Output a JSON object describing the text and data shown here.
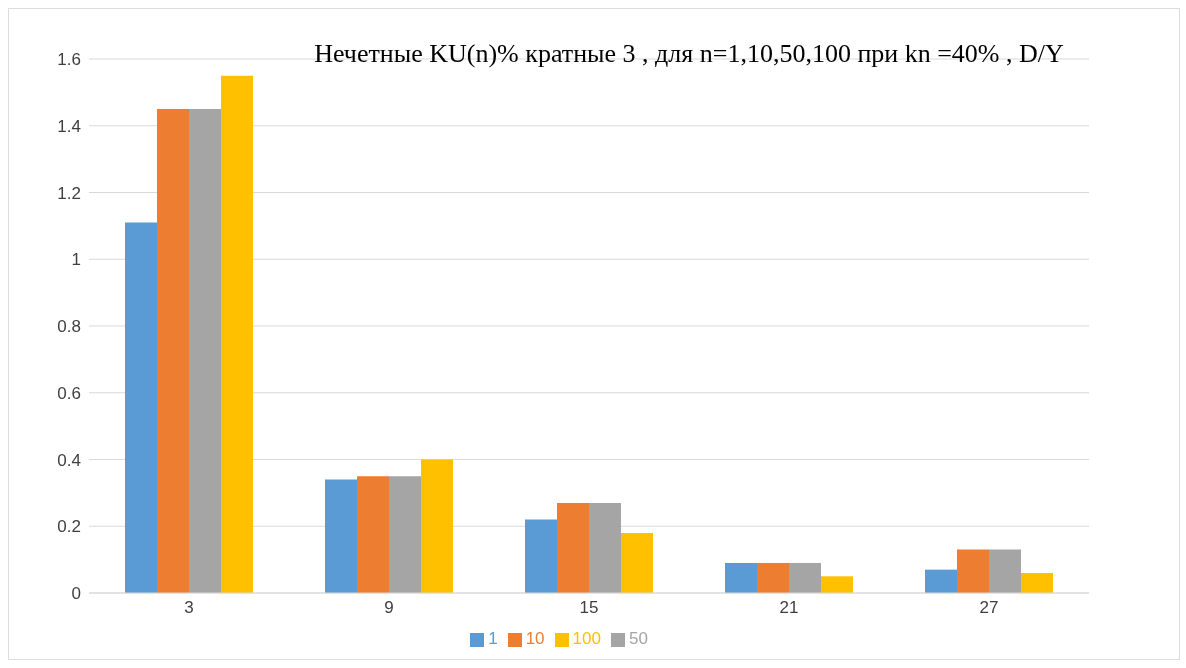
{
  "chart_data": {
    "type": "bar",
    "title": "Нечетные KU(n)%   кратные 3 ,  для n=1,10,50,100 при kn =40% , D/Y",
    "categories": [
      "3",
      "9",
      "15",
      "21",
      "27"
    ],
    "series": [
      {
        "name": "1",
        "color": "#5b9bd5",
        "values": [
          1.11,
          0.34,
          0.22,
          0.09,
          0.07
        ]
      },
      {
        "name": "10",
        "color": "#ed7d31",
        "values": [
          1.45,
          0.35,
          0.27,
          0.09,
          0.13
        ]
      },
      {
        "name": "50",
        "color": "#a5a5a5",
        "values": [
          1.45,
          0.35,
          0.27,
          0.09,
          0.13
        ]
      },
      {
        "name": "100",
        "color": "#ffc000",
        "values": [
          1.55,
          0.4,
          0.18,
          0.05,
          0.06
        ]
      }
    ],
    "ylim": [
      0,
      1.6
    ],
    "yticks": [
      0,
      0.2,
      0.4,
      0.6,
      0.8,
      1,
      1.2,
      1.4,
      1.6
    ],
    "grid": "y",
    "legend": "bottom"
  }
}
